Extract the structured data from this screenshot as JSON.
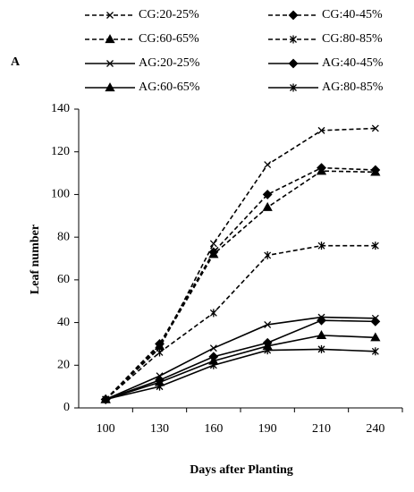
{
  "chart_data": {
    "type": "line",
    "panel_label": "A",
    "y_label": "Leaf number",
    "x_label": "Days after Planting",
    "categories": [
      "100",
      "130",
      "160",
      "190",
      "210",
      "240"
    ],
    "ylim": [
      0,
      140
    ],
    "yticks": [
      0,
      20,
      40,
      60,
      80,
      100,
      120,
      140
    ],
    "series": [
      {
        "name": "CG:20-25%",
        "color": "#000000",
        "dashed": true,
        "marker": "x",
        "values": [
          4,
          28,
          77,
          114,
          130,
          131
        ]
      },
      {
        "name": "CG:40-45%",
        "color": "#000000",
        "dashed": true,
        "marker": "diamond",
        "values": [
          4,
          30,
          73,
          100,
          112.5,
          111.5
        ]
      },
      {
        "name": "CG:60-65%",
        "color": "#000000",
        "dashed": true,
        "marker": "triangle",
        "values": [
          4,
          29,
          72,
          94,
          111,
          110.5
        ]
      },
      {
        "name": "CG:80-85%",
        "color": "#000000",
        "dashed": true,
        "marker": "star",
        "values": [
          4,
          26,
          44.5,
          71.5,
          76,
          76
        ]
      },
      {
        "name": "AG:20-25%",
        "color": "#000000",
        "dashed": false,
        "marker": "x",
        "values": [
          4,
          15,
          28,
          39,
          42.5,
          42
        ]
      },
      {
        "name": "AG:40-45%",
        "color": "#000000",
        "dashed": false,
        "marker": "diamond",
        "values": [
          4,
          13,
          24,
          30.5,
          41,
          40.5
        ]
      },
      {
        "name": "AG:60-65%",
        "color": "#000000",
        "dashed": false,
        "marker": "triangle",
        "values": [
          4,
          12,
          22,
          29,
          34,
          33
        ]
      },
      {
        "name": "AG:80-85%",
        "color": "#000000",
        "dashed": false,
        "marker": "star",
        "values": [
          4,
          10,
          20,
          27,
          27.5,
          26.5
        ]
      }
    ]
  }
}
